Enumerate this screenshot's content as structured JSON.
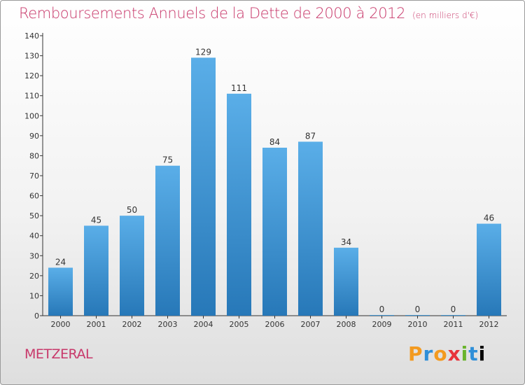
{
  "header": {
    "title": "Remboursements Annuels de la Dette de 2000 à 2012",
    "subtitle": "(en milliers d'€)"
  },
  "footer": {
    "commune": "METZERAL",
    "logo": [
      "P",
      "r",
      "o",
      "x",
      "i",
      "t",
      "i"
    ]
  },
  "colors": {
    "title": "#c8386a",
    "bar_top": "#5aaee8",
    "bar_bottom": "#2778b8"
  },
  "chart_data": {
    "type": "bar",
    "title": "Remboursements Annuels de la Dette de 2000 à 2012",
    "subtitle": "(en milliers d'€)",
    "xlabel": "",
    "ylabel": "",
    "categories": [
      "2000",
      "2001",
      "2002",
      "2003",
      "2004",
      "2005",
      "2006",
      "2007",
      "2008",
      "2009",
      "2010",
      "2011",
      "2012"
    ],
    "values": [
      24,
      45,
      50,
      75,
      129,
      111,
      84,
      87,
      34,
      0,
      0,
      0,
      46
    ],
    "ylim": [
      0,
      140
    ],
    "yticks": [
      0,
      10,
      20,
      30,
      40,
      50,
      60,
      70,
      80,
      90,
      100,
      110,
      120,
      130,
      140
    ],
    "grid": false,
    "legend": "none"
  }
}
